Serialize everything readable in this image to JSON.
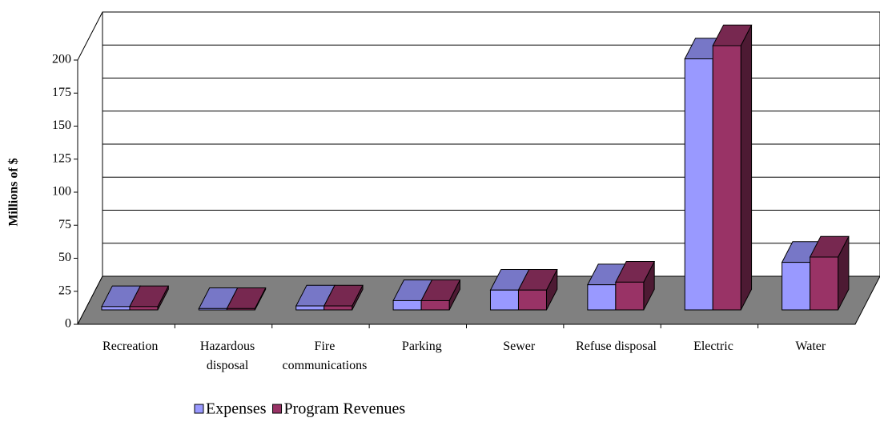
{
  "chart_data": {
    "type": "bar3d",
    "y_label": "Millions of $",
    "categories": [
      "Recreation",
      "Hazardous\ndisposal",
      "Fire\ncommunications",
      "Parking",
      "Sewer",
      "Refuse disposal",
      "Electric",
      "Water"
    ],
    "series": [
      {
        "name": "Expenses",
        "color": "#9999ff",
        "values": [
          2.5,
          1,
          3,
          7,
          15,
          19,
          190,
          36
        ]
      },
      {
        "name": "Program Revenues",
        "color": "#993366",
        "values": [
          2.5,
          1,
          3,
          7,
          15,
          21,
          200,
          40
        ]
      }
    ],
    "ylim": [
      0,
      200
    ],
    "yticks": [
      0,
      25,
      50,
      75,
      100,
      125,
      150,
      175,
      200
    ],
    "grid": true,
    "legend": "bottom"
  }
}
